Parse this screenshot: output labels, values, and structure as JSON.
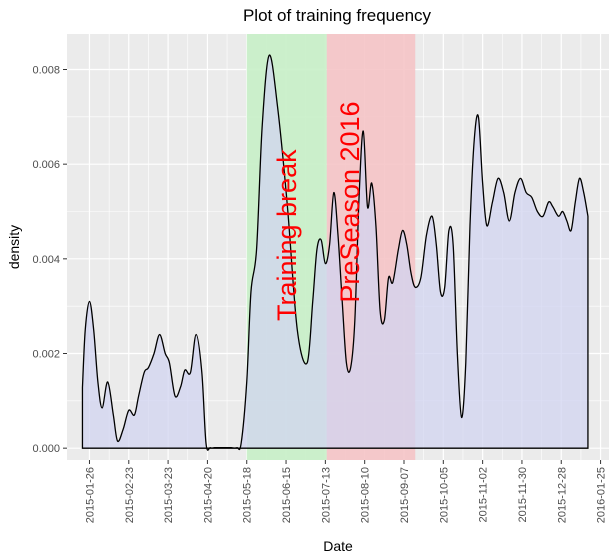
{
  "chart_data": {
    "type": "area",
    "title": "Plot of training frequency",
    "xlabel": "Date",
    "ylabel": "density",
    "xlim": [
      "2015-01-10",
      "2016-01-31"
    ],
    "ylim": [
      -0.00025,
      0.00875
    ],
    "y_ticks": [
      0,
      0.002,
      0.004,
      0.006,
      0.008
    ],
    "y_tick_labels": [
      "0.000",
      "0.002",
      "0.004",
      "0.006",
      "0.008"
    ],
    "x_ticks": [
      "2015-01-26",
      "2015-02-23",
      "2015-03-23",
      "2015-04-20",
      "2015-05-18",
      "2015-06-15",
      "2015-07-13",
      "2015-08-10",
      "2015-09-07",
      "2015-10-05",
      "2015-11-02",
      "2015-11-30",
      "2015-12-28",
      "2016-01-25"
    ],
    "x_tick_labels": [
      "2015-01-26",
      "2015-02-23",
      "2015-03-23",
      "2015-04-20",
      "2015-05-18",
      "2015-06-15",
      "2015-07-13",
      "2015-08-10",
      "2015-09-07",
      "2015-10-05",
      "2015-11-02",
      "2015-11-30",
      "2015-12-28",
      "2016-01-25"
    ],
    "grid": true,
    "colors": {
      "panel": "#ebebeb",
      "grid": "#ffffff",
      "density_fill": "#d2d4f0",
      "density_line": "#000000",
      "training_break": "#c8f0c8",
      "preseason": "#f5c4c6",
      "annotation_text": "#ff0000"
    },
    "regions": [
      {
        "label": "Training break",
        "start": "2015-05-18",
        "end": "2015-07-14",
        "color": "#c8f0c8"
      },
      {
        "label": "PreSeason 2016",
        "start": "2015-07-14",
        "end": "2015-09-15",
        "color": "#f5c4c6"
      }
    ],
    "series": [
      {
        "x": [
          "2015-01-21",
          "2015-01-23",
          "2015-01-26",
          "2015-01-29",
          "2015-02-01",
          "2015-02-04",
          "2015-02-08",
          "2015-02-12",
          "2015-02-15",
          "2015-02-19",
          "2015-02-23",
          "2015-02-27",
          "2015-03-02",
          "2015-03-06",
          "2015-03-09",
          "2015-03-13",
          "2015-03-17",
          "2015-03-21",
          "2015-03-24",
          "2015-03-28",
          "2015-04-01",
          "2015-04-04",
          "2015-04-08",
          "2015-04-12",
          "2015-04-16",
          "2015-04-19",
          "2015-04-22",
          "2015-04-25",
          "2015-04-28",
          "2015-05-01",
          "2015-05-04",
          "2015-05-07",
          "2015-05-11",
          "2015-05-14",
          "2015-05-18",
          "2015-05-21",
          "2015-05-25",
          "2015-05-29",
          "2015-06-03",
          "2015-06-09",
          "2015-06-16",
          "2015-06-23",
          "2015-06-30",
          "2015-07-04",
          "2015-07-07",
          "2015-07-10",
          "2015-07-13",
          "2015-07-16",
          "2015-07-19",
          "2015-07-22",
          "2015-07-25",
          "2015-07-28",
          "2015-07-31",
          "2015-08-03",
          "2015-08-06",
          "2015-08-09",
          "2015-08-12",
          "2015-08-15",
          "2015-08-18",
          "2015-08-21",
          "2015-08-24",
          "2015-08-27",
          "2015-08-30",
          "2015-09-03",
          "2015-09-06",
          "2015-09-09",
          "2015-09-12",
          "2015-09-15",
          "2015-09-19",
          "2015-09-23",
          "2015-09-27",
          "2015-09-30",
          "2015-10-03",
          "2015-10-06",
          "2015-10-09",
          "2015-10-12",
          "2015-10-15",
          "2015-10-18",
          "2015-10-21",
          "2015-10-24",
          "2015-10-27",
          "2015-10-30",
          "2015-11-02",
          "2015-11-05",
          "2015-11-09",
          "2015-11-13",
          "2015-11-17",
          "2015-11-21",
          "2015-11-25",
          "2015-11-29",
          "2015-12-03",
          "2015-12-07",
          "2015-12-11",
          "2015-12-15",
          "2015-12-19",
          "2015-12-22",
          "2015-12-26",
          "2015-12-29",
          "2016-01-01",
          "2016-01-04",
          "2016-01-07",
          "2016-01-10",
          "2016-01-13",
          "2016-01-16"
        ],
        "y": [
          0.00128,
          0.0025,
          0.0031,
          0.0025,
          0.0014,
          0.00085,
          0.0014,
          0.0007,
          0.00015,
          0.0004,
          0.0008,
          0.0007,
          0.0011,
          0.0016,
          0.0017,
          0.002,
          0.0024,
          0.002,
          0.0018,
          0.0011,
          0.0013,
          0.00165,
          0.0016,
          0.0024,
          0.0016,
          0.0001,
          1e-05,
          1e-05,
          1e-05,
          1e-05,
          1e-05,
          1e-05,
          1e-05,
          0.0001,
          0.0014,
          0.0033,
          0.0042,
          0.0068,
          0.0083,
          0.0072,
          0.0051,
          0.0025,
          0.0018,
          0.0031,
          0.0042,
          0.0044,
          0.0039,
          0.0043,
          0.0054,
          0.0045,
          0.0031,
          0.0018,
          0.0017,
          0.0027,
          0.0053,
          0.0067,
          0.0051,
          0.0056,
          0.0047,
          0.0029,
          0.0027,
          0.0036,
          0.0035,
          0.0042,
          0.0046,
          0.0043,
          0.0037,
          0.0034,
          0.0036,
          0.0045,
          0.0049,
          0.0043,
          0.0033,
          0.0034,
          0.0046,
          0.0043,
          0.002,
          0.00065,
          0.0018,
          0.0047,
          0.0065,
          0.007,
          0.0056,
          0.0047,
          0.0052,
          0.0057,
          0.0054,
          0.0048,
          0.0054,
          0.0057,
          0.0054,
          0.0053,
          0.005,
          0.0049,
          0.0052,
          0.0051,
          0.0049,
          0.005,
          0.0048,
          0.0046,
          0.0052,
          0.0057,
          0.0054,
          0.0049
        ]
      }
    ]
  }
}
